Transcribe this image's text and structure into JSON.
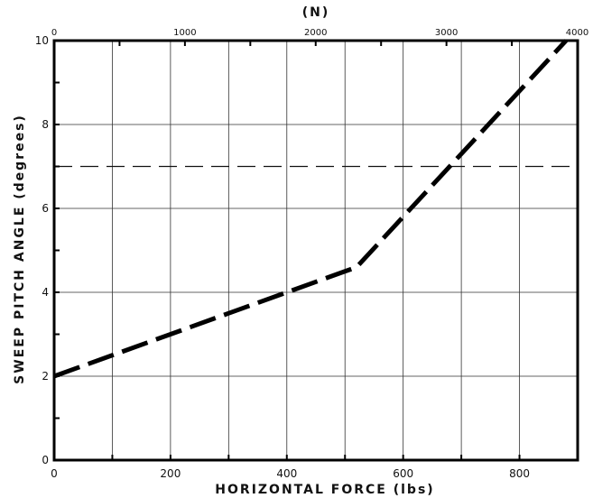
{
  "chart_data": {
    "type": "line",
    "xlabel": "HORIZONTAL FORCE (lbs)",
    "ylabel": "SWEEP PITCH ANGLE (degrees)",
    "x2label": "(N)",
    "xlim": [
      0,
      900
    ],
    "ylim": [
      0,
      10
    ],
    "x_ticks": [
      "0",
      "200",
      "400",
      "600",
      "800"
    ],
    "y_ticks": [
      "0",
      "2",
      "4",
      "6",
      "8",
      "10"
    ],
    "x2_ticks": [
      "0",
      "1000",
      "2000",
      "3000",
      "4000"
    ],
    "grid": true,
    "series": [
      {
        "style": "long-dash",
        "x": [
          0,
          520,
          880
        ],
        "y": [
          2.0,
          4.6,
          10.0
        ]
      }
    ],
    "reference_line": {
      "style": "thin-dash",
      "y": 7.0
    }
  }
}
